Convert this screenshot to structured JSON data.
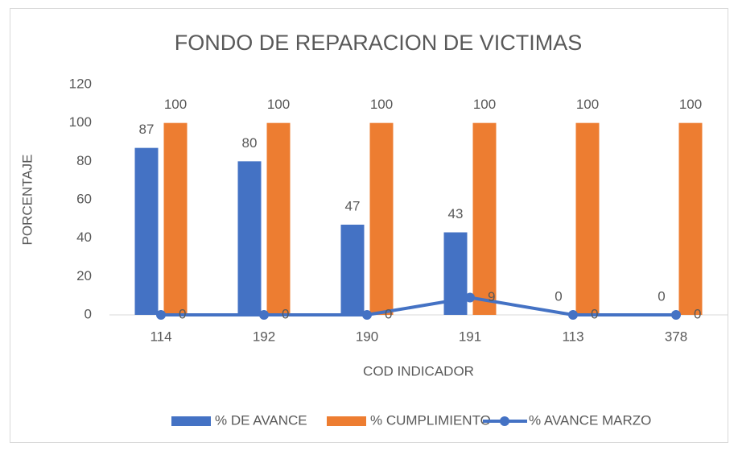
{
  "chart_data": {
    "type": "bar",
    "title": "FONDO DE REPARACION DE VICTIMAS",
    "x_label": "COD INDICADOR",
    "y_label": "PORCENTAJE",
    "categories": [
      "114",
      "192",
      "190",
      "191",
      "113",
      "378"
    ],
    "series": [
      {
        "name": "% DE AVANCE",
        "type": "bar",
        "color": "#4472c4",
        "values": [
          87,
          80,
          47,
          43,
          0,
          0
        ]
      },
      {
        "name": "% CUMPLIMIENTO",
        "type": "bar",
        "color": "#ed7d31",
        "values": [
          100,
          100,
          100,
          100,
          100,
          100
        ]
      },
      {
        "name": "% AVANCE MARZO",
        "type": "line",
        "color": "#4472c4",
        "values": [
          0,
          0,
          0,
          9,
          0,
          0
        ]
      }
    ],
    "ylim": [
      0,
      120
    ],
    "yticks": [
      0,
      20,
      40,
      60,
      80,
      100,
      120
    ],
    "grid": false,
    "legend": "bottom"
  }
}
